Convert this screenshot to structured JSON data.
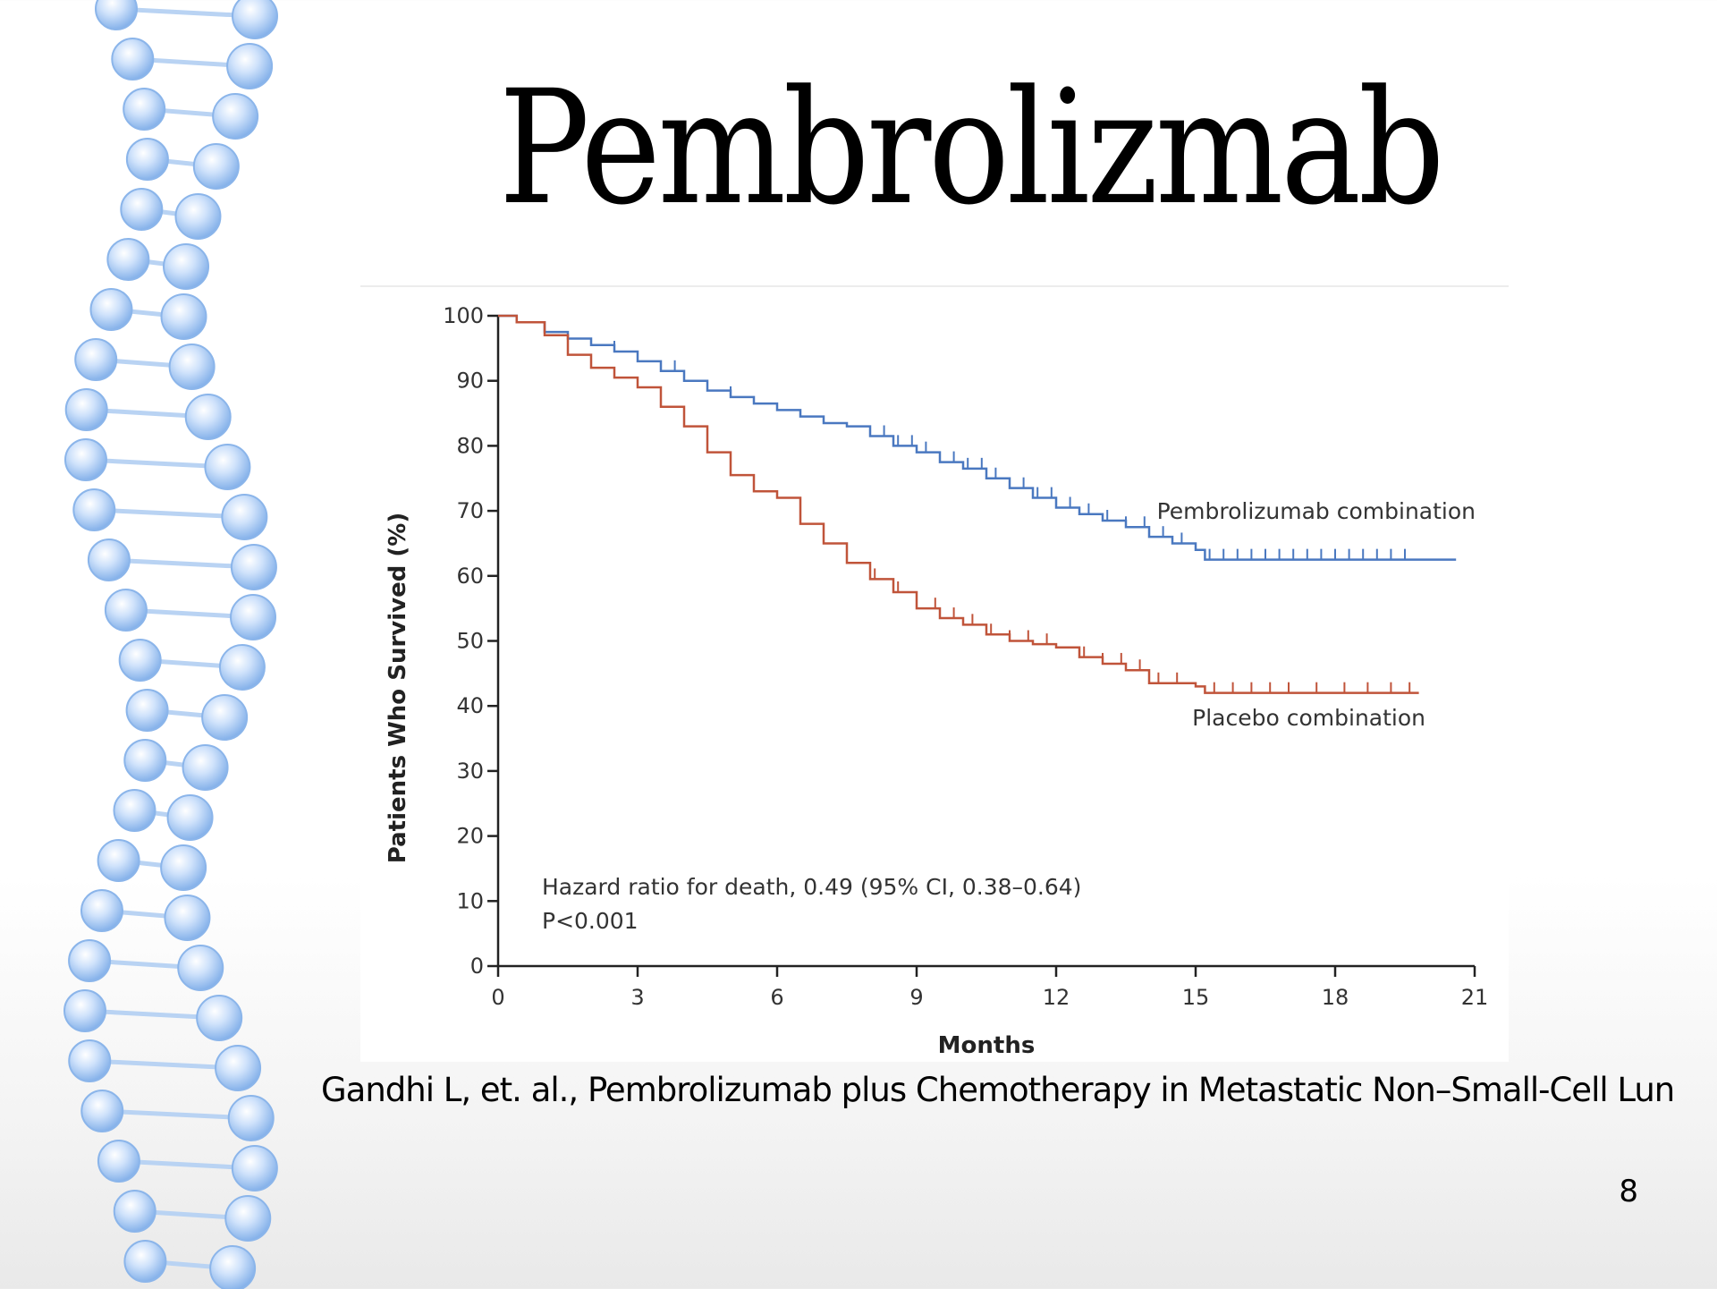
{
  "slide": {
    "title": "Pembrolizmab",
    "citation": "Gandhi L, et. al., Pembrolizumab plus Chemotherapy in Metastatic Non–Small-Cell Lun",
    "page_number": "8"
  },
  "chart_data": {
    "type": "line",
    "xlabel": "Months",
    "ylabel": "Patients Who Survived (%)",
    "xlim": [
      0,
      21
    ],
    "ylim": [
      0,
      100
    ],
    "xticks": [
      0,
      3,
      6,
      9,
      12,
      15,
      18,
      21
    ],
    "yticks": [
      0,
      10,
      20,
      30,
      40,
      50,
      60,
      70,
      80,
      90,
      100
    ],
    "grid": false,
    "annotation_lines": [
      "Hazard ratio for death, 0.49 (95% CI, 0.38–0.64)",
      "P<0.001"
    ],
    "series": [
      {
        "name": "Pembrolizumab combination",
        "color": "#4a78c0",
        "x": [
          0,
          0.4,
          1.0,
          1.5,
          2.0,
          2.5,
          3.0,
          3.5,
          4.0,
          4.5,
          5.0,
          5.5,
          6.0,
          6.5,
          7.0,
          7.5,
          8.0,
          8.5,
          9.0,
          9.5,
          10.0,
          10.5,
          11.0,
          11.5,
          12.0,
          12.5,
          13.0,
          13.5,
          14.0,
          14.5,
          15.0,
          15.2,
          16.0,
          17.0,
          18.0,
          19.0,
          20.0,
          20.6
        ],
        "y": [
          100,
          99,
          97.5,
          96.5,
          95.5,
          94.5,
          93.0,
          91.5,
          90.0,
          88.5,
          87.5,
          86.5,
          85.5,
          84.5,
          83.5,
          83.0,
          81.5,
          80.0,
          79.0,
          77.5,
          76.5,
          75.0,
          73.5,
          72.0,
          70.5,
          69.5,
          68.5,
          67.5,
          66.0,
          65.0,
          64.0,
          62.5,
          62.5,
          62.5,
          62.5,
          62.5,
          62.5,
          62.5
        ],
        "censor_x": [
          2.5,
          3.8,
          5.0,
          8.0,
          8.3,
          8.6,
          8.9,
          9.2,
          9.5,
          9.8,
          10.1,
          10.4,
          10.7,
          11.0,
          11.3,
          11.6,
          11.9,
          12.3,
          12.7,
          13.1,
          13.5,
          13.9,
          14.3,
          14.7,
          15.3,
          15.6,
          15.9,
          16.2,
          16.5,
          16.8,
          17.1,
          17.4,
          17.7,
          18.0,
          18.3,
          18.6,
          18.9,
          19.2,
          19.5
        ]
      },
      {
        "name": "Placebo combination",
        "color": "#c0543a",
        "x": [
          0,
          0.4,
          1.0,
          1.5,
          2.0,
          2.5,
          3.0,
          3.5,
          4.0,
          4.5,
          5.0,
          5.5,
          6.0,
          6.5,
          7.0,
          7.5,
          8.0,
          8.5,
          9.0,
          9.5,
          10.0,
          10.5,
          11.0,
          11.5,
          12.0,
          12.5,
          13.0,
          13.5,
          14.0,
          14.5,
          15.0,
          15.2,
          16.0,
          17.0,
          18.0,
          19.0,
          19.8
        ],
        "y": [
          100,
          99,
          97.0,
          94.0,
          92.0,
          90.5,
          89.0,
          86.0,
          83.0,
          79.0,
          75.5,
          73.0,
          72.0,
          68.0,
          65.0,
          62.0,
          59.5,
          57.5,
          55.0,
          53.5,
          52.5,
          51.0,
          50.0,
          49.5,
          49.0,
          47.5,
          46.5,
          45.5,
          43.5,
          43.5,
          43.0,
          42.0,
          42.0,
          42.0,
          42.0,
          42.0,
          42.0
        ],
        "censor_x": [
          8.1,
          8.6,
          9.0,
          9.4,
          9.8,
          10.2,
          10.6,
          11.0,
          11.4,
          11.8,
          12.6,
          13.0,
          13.4,
          13.8,
          14.2,
          14.6,
          15.4,
          15.8,
          16.2,
          16.6,
          17.0,
          17.6,
          18.2,
          18.7,
          19.2,
          19.6
        ]
      }
    ]
  },
  "labels": {
    "pembro_label": "Pembrolizumab combination",
    "placebo_label": "Placebo combination"
  }
}
